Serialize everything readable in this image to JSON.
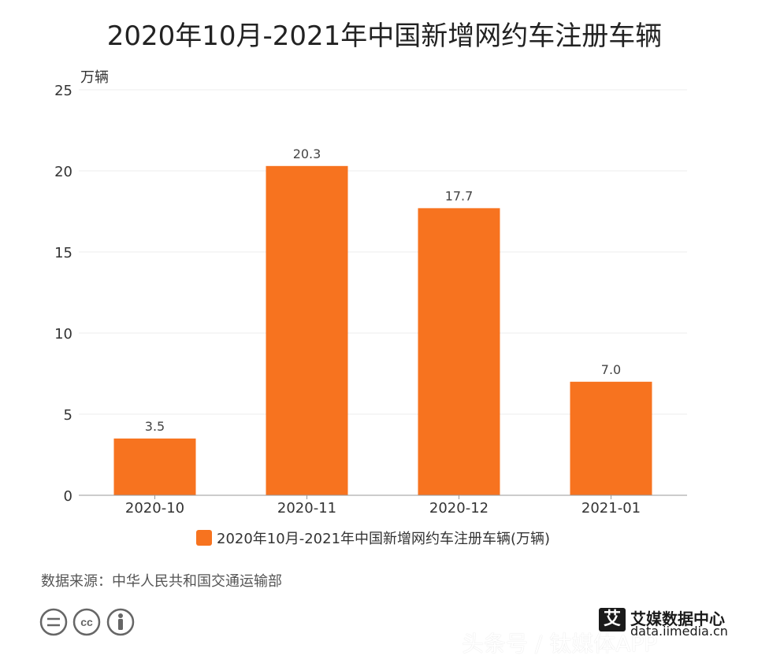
{
  "chart_data": {
    "type": "bar",
    "title": "2020年10月-2021年中国新增网约车注册车辆",
    "ylabel": "万辆",
    "xlabel": "",
    "categories": [
      "2020-10",
      "2020-11",
      "2020-12",
      "2021-01"
    ],
    "series": [
      {
        "name": "2020年10月-2021年中国新增网约车注册车辆(万辆)",
        "values": [
          3.5,
          20.3,
          17.7,
          7.0
        ]
      }
    ],
    "data_labels": [
      "3.5",
      "20.3",
      "17.7",
      "7.0"
    ],
    "ylim": [
      0,
      25
    ],
    "yticks": [
      0,
      5,
      10,
      15,
      20,
      25
    ],
    "grid": true,
    "legend": "bottom-center",
    "bar_color": "#f7731f"
  },
  "footer": {
    "source": "数据来源：中华人民共和国交通运输部",
    "cc_icons": [
      "equal-icon",
      "cc-icon",
      "person-icon"
    ],
    "brand_logo": "艾",
    "brand_name": "艾媒数据中心",
    "brand_url": "data.iimedia.cn",
    "overlay_text": "头条号 / 钛媒体APP"
  }
}
